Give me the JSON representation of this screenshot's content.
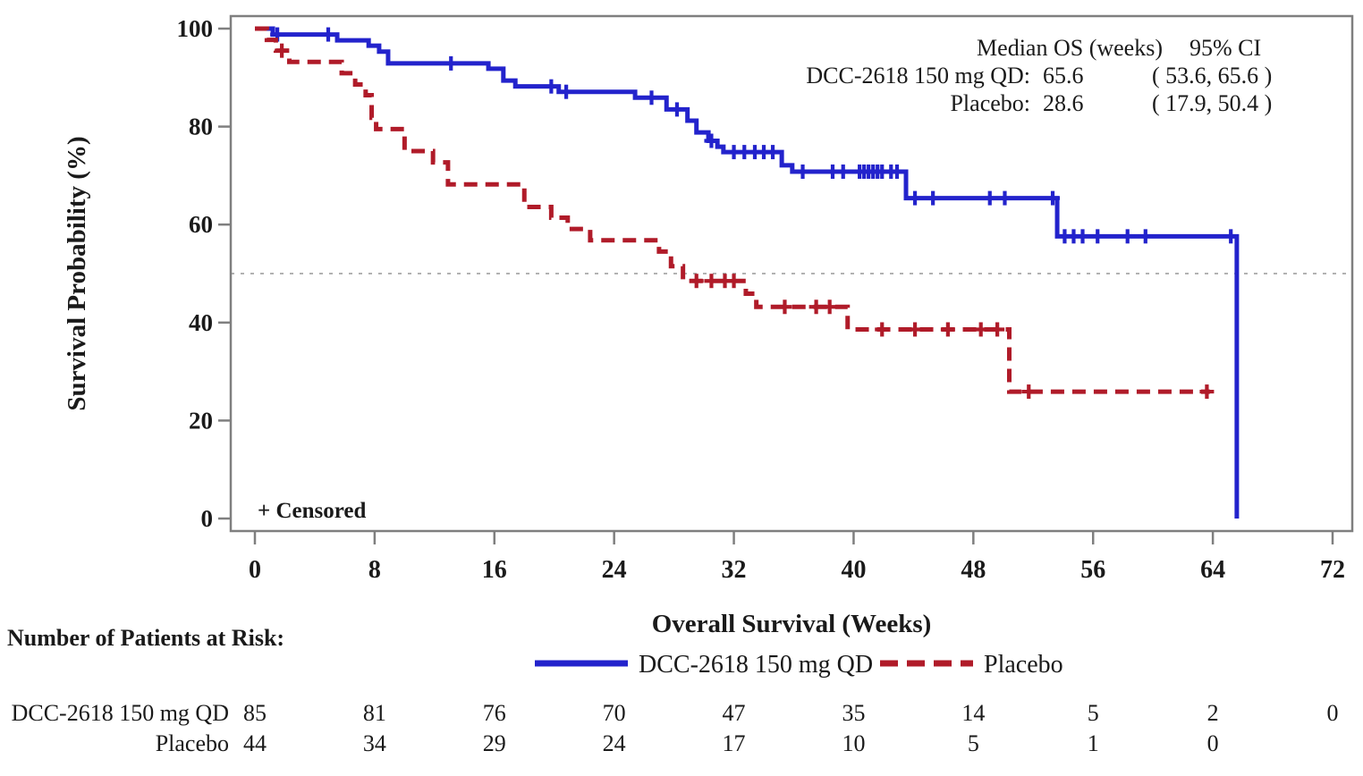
{
  "figure": {
    "background": "#ffffff",
    "axis_color": "#7f7f7f",
    "text_color": "#1a1a1a",
    "reference_line_color": "#999999"
  },
  "chart_data": {
    "type": "line",
    "subtype": "kaplan-meier-step",
    "title": "",
    "xlabel": "Overall Survival (Weeks)",
    "ylabel": "Survival Probability (%)",
    "xlim": [
      0,
      73.5
    ],
    "ylim": [
      0,
      100
    ],
    "xticks": [
      0,
      8,
      16,
      24,
      32,
      40,
      48,
      56,
      64,
      72
    ],
    "yticks": [
      0,
      20,
      40,
      60,
      80,
      100
    ],
    "grid": false,
    "reference_line_y": 50,
    "censored_note": "+ Censored",
    "legend_position": "below-x-axis",
    "series": [
      {
        "name": "DCC-2618 150 mg QD",
        "color": "#2323cc",
        "line_style": "solid",
        "end_week": 65.6,
        "steps": [
          [
            0,
            100
          ],
          [
            1.2,
            98.8
          ],
          [
            5.5,
            97.6
          ],
          [
            7.6,
            96.5
          ],
          [
            8.3,
            95.3
          ],
          [
            8.9,
            92.9
          ],
          [
            15.6,
            91.8
          ],
          [
            16.6,
            89.4
          ],
          [
            17.4,
            88.2
          ],
          [
            20.3,
            87.1
          ],
          [
            25.4,
            85.9
          ],
          [
            27.5,
            83.5
          ],
          [
            28.9,
            81.2
          ],
          [
            29.5,
            78.8
          ],
          [
            30.3,
            77.1
          ],
          [
            30.9,
            75.9
          ],
          [
            31.3,
            74.8
          ],
          [
            35.2,
            72.1
          ],
          [
            35.9,
            70.8
          ],
          [
            43.5,
            65.4
          ],
          [
            53.6,
            57.6
          ],
          [
            65.6,
            0
          ]
        ],
        "censored": [
          [
            1.5,
            98.8
          ],
          [
            4.9,
            98.8
          ],
          [
            13.1,
            92.9
          ],
          [
            19.8,
            88.2
          ],
          [
            20.8,
            87.1
          ],
          [
            26.5,
            85.9
          ],
          [
            28.2,
            83.5
          ],
          [
            30.5,
            77.1
          ],
          [
            32.0,
            74.8
          ],
          [
            32.7,
            74.8
          ],
          [
            33.4,
            74.8
          ],
          [
            34.0,
            74.8
          ],
          [
            34.6,
            74.8
          ],
          [
            36.6,
            70.8
          ],
          [
            38.6,
            70.8
          ],
          [
            39.3,
            70.8
          ],
          [
            40.4,
            70.8
          ],
          [
            40.7,
            70.8
          ],
          [
            41.0,
            70.8
          ],
          [
            41.3,
            70.8
          ],
          [
            41.6,
            70.8
          ],
          [
            41.9,
            70.8
          ],
          [
            42.5,
            70.8
          ],
          [
            42.9,
            70.8
          ],
          [
            44.1,
            65.4
          ],
          [
            45.3,
            65.4
          ],
          [
            49.1,
            65.4
          ],
          [
            50.1,
            65.4
          ],
          [
            53.3,
            65.4
          ],
          [
            54.1,
            57.6
          ],
          [
            54.7,
            57.6
          ],
          [
            55.3,
            57.6
          ],
          [
            56.3,
            57.6
          ],
          [
            58.3,
            57.6
          ],
          [
            59.5,
            57.6
          ],
          [
            65.2,
            57.6
          ]
        ]
      },
      {
        "name": "Placebo",
        "color": "#b01b29",
        "line_style": "dashed",
        "end_week": 63.8,
        "steps": [
          [
            0,
            100
          ],
          [
            0.8,
            97.7
          ],
          [
            1.4,
            95.5
          ],
          [
            2.3,
            93.2
          ],
          [
            5.8,
            90.9
          ],
          [
            6.7,
            88.6
          ],
          [
            7.4,
            86.4
          ],
          [
            7.8,
            81.8
          ],
          [
            8.1,
            79.5
          ],
          [
            10.0,
            75.0
          ],
          [
            11.9,
            72.7
          ],
          [
            12.9,
            68.2
          ],
          [
            18.0,
            63.6
          ],
          [
            19.8,
            61.4
          ],
          [
            20.9,
            59.1
          ],
          [
            22.4,
            56.8
          ],
          [
            27.0,
            54.5
          ],
          [
            27.8,
            51.5
          ],
          [
            28.6,
            48.5
          ],
          [
            32.8,
            45.9
          ],
          [
            33.5,
            43.2
          ],
          [
            39.6,
            38.6
          ],
          [
            50.4,
            25.9
          ]
        ],
        "censored": [
          [
            1.8,
            95.5
          ],
          [
            29.5,
            48.5
          ],
          [
            30.5,
            48.5
          ],
          [
            31.4,
            48.5
          ],
          [
            32.0,
            48.5
          ],
          [
            35.4,
            43.2
          ],
          [
            37.5,
            43.2
          ],
          [
            38.4,
            43.2
          ],
          [
            41.9,
            38.6
          ],
          [
            44.1,
            38.6
          ],
          [
            46.3,
            38.6
          ],
          [
            48.5,
            38.6
          ],
          [
            49.6,
            38.6
          ],
          [
            51.7,
            25.9
          ],
          [
            63.6,
            25.9
          ]
        ]
      }
    ],
    "annotation": {
      "col1_header": "Median OS (weeks)",
      "col2_header": "95% CI",
      "rows": [
        {
          "label": "DCC-2618 150 mg QD:",
          "median": "65.6",
          "ci": "( 53.6,  65.6 )"
        },
        {
          "label": "Placebo:",
          "median": "28.6",
          "ci": "( 17.9,  50.4 )"
        }
      ]
    },
    "risk_table": {
      "title": "Number of Patients at Risk:",
      "weeks": [
        0,
        8,
        16,
        24,
        32,
        40,
        48,
        56,
        64,
        72
      ],
      "rows": [
        {
          "label": "DCC-2618 150 mg QD",
          "counts": [
            "85",
            "81",
            "76",
            "70",
            "47",
            "35",
            "14",
            "5",
            "2",
            "0"
          ]
        },
        {
          "label": "Placebo",
          "counts": [
            "44",
            "34",
            "29",
            "24",
            "17",
            "10",
            "5",
            "1",
            "0",
            ""
          ]
        }
      ]
    }
  }
}
